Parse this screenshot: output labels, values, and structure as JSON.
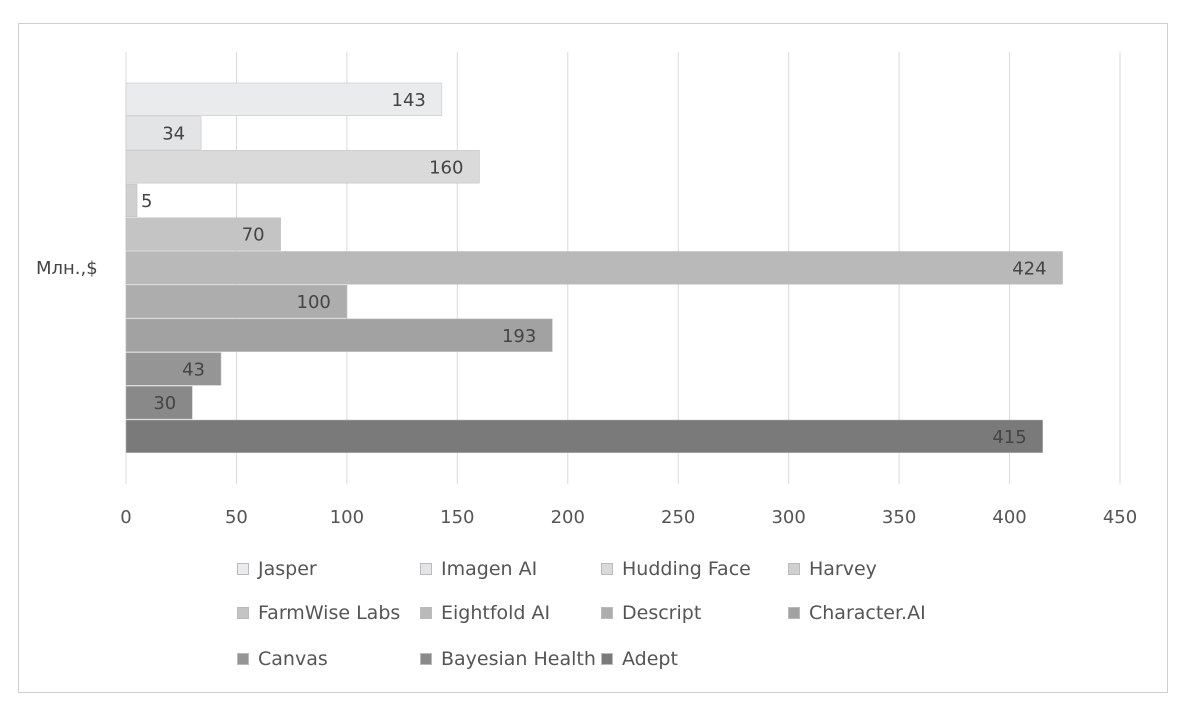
{
  "chart_data": {
    "type": "bar",
    "orientation": "horizontal",
    "ylabel": "Млн.,$",
    "xlim": [
      0,
      450
    ],
    "xticks": [
      0,
      50,
      100,
      150,
      200,
      250,
      300,
      350,
      400,
      450
    ],
    "grid": true,
    "legend_position": "bottom",
    "series": [
      {
        "name": "Jasper",
        "value": 143,
        "label": "143",
        "color": "#e9ebec"
      },
      {
        "name": "Imagen AI",
        "value": 34,
        "label": "34",
        "color": "#e2e4e5"
      },
      {
        "name": "Hudding Face",
        "value": 160,
        "label": "160",
        "color": "#dadada"
      },
      {
        "name": "Harvey",
        "value": 5,
        "label": "5",
        "color": "#d0d0d0"
      },
      {
        "name": "FarmWise Labs",
        "value": 70,
        "label": "70",
        "color": "#c4c4c4"
      },
      {
        "name": "Eightfold AI",
        "value": 424,
        "label": "424",
        "color": "#b9b9b9"
      },
      {
        "name": "Descript",
        "value": 100,
        "label": "100",
        "color": "#adadad"
      },
      {
        "name": "Character.AI",
        "value": 193,
        "label": "193",
        "color": "#a2a2a2"
      },
      {
        "name": "Canvas",
        "value": 43,
        "label": "43",
        "color": "#959595"
      },
      {
        "name": "Bayesian Health",
        "value": 30,
        "label": "30",
        "color": "#898989"
      },
      {
        "name": "Adept",
        "value": 415,
        "label": "415",
        "color": "#7a7a7a"
      }
    ]
  }
}
